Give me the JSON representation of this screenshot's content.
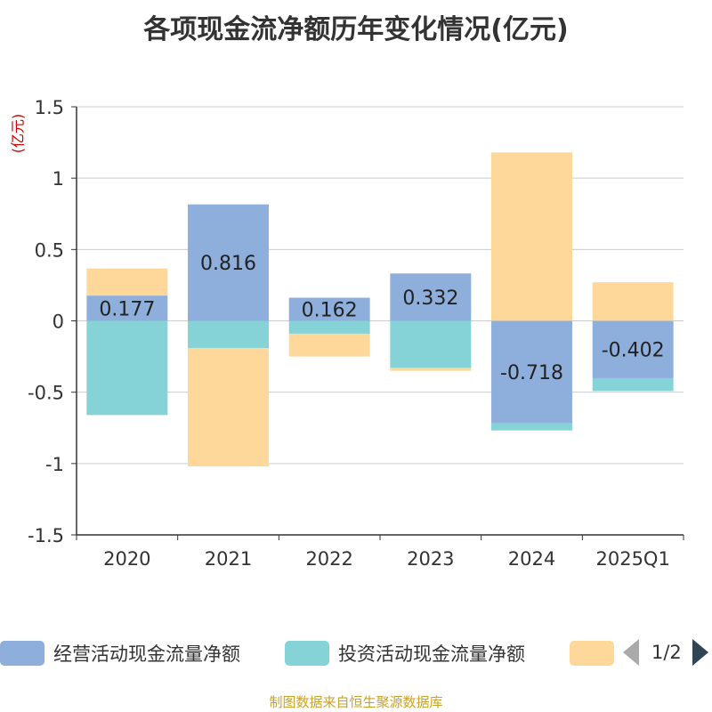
{
  "title": "各项现金流净额历年变化情况(亿元)",
  "unit_label": "(亿元)",
  "footer": "制图数据来自恒生聚源数据库",
  "pager": {
    "text": "1/2"
  },
  "colors": {
    "operating": "#8eaedb",
    "investing": "#85d3d6",
    "financing": "#fdd89a",
    "grid": "#cccccc",
    "axis": "#333333",
    "text": "#333333"
  },
  "chart_data": {
    "type": "bar",
    "stacked": true,
    "title": "各项现金流净额历年变化情况(亿元)",
    "ylabel": "(亿元)",
    "categories": [
      "2020",
      "2021",
      "2022",
      "2023",
      "2024",
      "2025Q1"
    ],
    "ylim": [
      -1.5,
      1.5
    ],
    "yticks": [
      1.5,
      1,
      0.5,
      0,
      -0.5,
      -1,
      -1.5
    ],
    "ytick_labels": [
      "1.5",
      "1",
      "0.5",
      "0",
      "-0.5",
      "-1",
      "-1.5"
    ],
    "series": [
      {
        "name": "经营活动现金流量净额",
        "color_key": "operating",
        "values": [
          0.177,
          0.816,
          0.162,
          0.332,
          -0.718,
          -0.402
        ],
        "labels": [
          "0.177",
          "0.816",
          "0.162",
          "0.332",
          "-0.718",
          "-0.402"
        ]
      },
      {
        "name": "投资活动现金流量净额",
        "color_key": "investing",
        "values": [
          -0.66,
          -0.19,
          -0.09,
          -0.33,
          -0.05,
          -0.09
        ]
      },
      {
        "name": "",
        "color_key": "financing",
        "values": [
          0.19,
          -0.83,
          -0.16,
          -0.02,
          1.18,
          0.27
        ]
      }
    ]
  }
}
